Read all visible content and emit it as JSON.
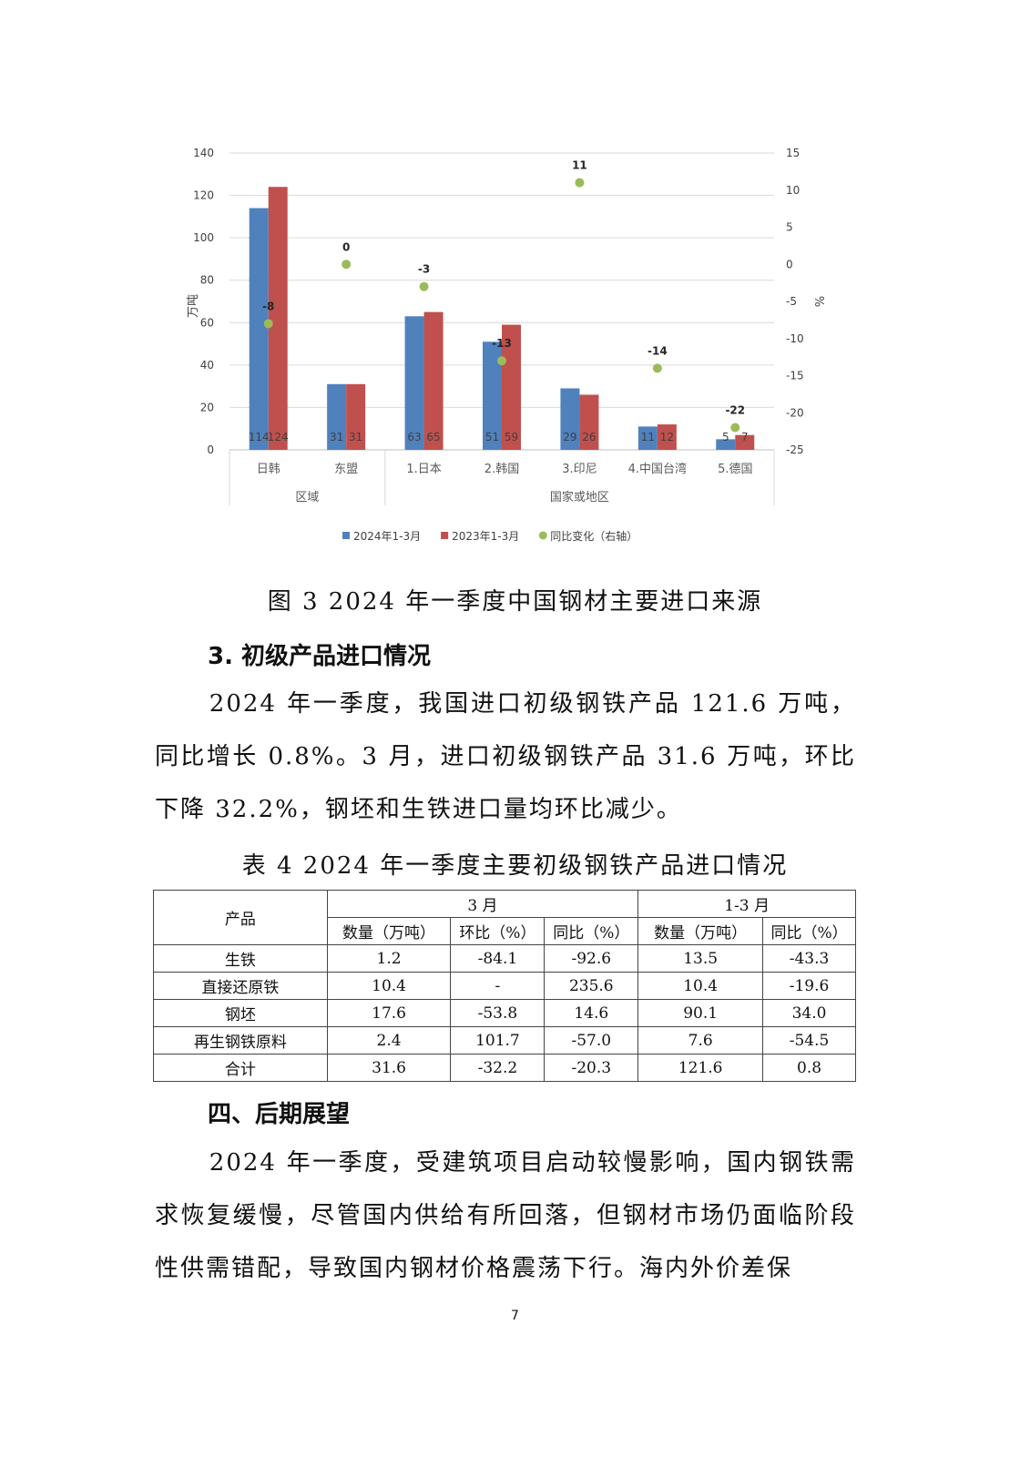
{
  "chart_data": {
    "type": "bar",
    "title": "",
    "ylabel": "万吨",
    "y2label": "%",
    "ylim": [
      0,
      140
    ],
    "y_ticks": [
      "0",
      "20",
      "40",
      "60",
      "80",
      "100",
      "120",
      "140"
    ],
    "y2lim": [
      -25,
      15
    ],
    "y2_ticks": [
      "-25",
      "-20",
      "-15",
      "-10",
      "-5",
      "0",
      "5",
      "10",
      "15"
    ],
    "grid": true,
    "legend_position": "bottom",
    "categories": [
      "日韩",
      "东盟",
      "1.日本",
      "2.韩国",
      "3.印尼",
      "4.中国台湾",
      "5.德国"
    ],
    "groups": [
      {
        "label": "区域",
        "count": 2
      },
      {
        "label": "国家或地区",
        "count": 5
      }
    ],
    "series": [
      {
        "name": "2024年1-3月",
        "type": "bar",
        "color": "#4f81bd",
        "values": [
          114,
          31,
          63,
          51,
          29,
          11,
          5
        ]
      },
      {
        "name": "2023年1-3月",
        "type": "bar",
        "color": "#c0504d",
        "values": [
          124,
          31,
          65,
          59,
          26,
          12,
          7
        ]
      },
      {
        "name": "同比变化（右轴）",
        "type": "scatter",
        "axis": "right",
        "color": "#9bbb59",
        "values": [
          -8,
          0,
          -3,
          -13,
          11,
          -14,
          -22
        ]
      }
    ]
  },
  "figure_caption": "图 3  2024 年一季度中国钢材主要进口来源",
  "section3_heading": "3. 初级产品进口情况",
  "section3_paragraph": "2024 年一季度，我国进口初级钢铁产品 121.6 万吨，同比增长 0.8%。3 月，进口初级钢铁产品 31.6 万吨，环比下降 32.2%，钢坯和生铁进口量均环比减少。",
  "table_caption": "表 4  2024 年一季度主要初级钢铁产品进口情况",
  "table": {
    "header_product": "产品",
    "group_march": "3 月",
    "group_q1": "1-3 月",
    "columns": [
      "数量（万吨）",
      "环比（%）",
      "同比（%）",
      "数量（万吨）",
      "同比（%）"
    ],
    "rows": [
      [
        "生铁",
        "1.2",
        "-84.1",
        "-92.6",
        "13.5",
        "-43.3"
      ],
      [
        "直接还原铁",
        "10.4",
        "-",
        "235.6",
        "10.4",
        "-19.6"
      ],
      [
        "钢坯",
        "17.6",
        "-53.8",
        "14.6",
        "90.1",
        "34.0"
      ],
      [
        "再生钢铁原料",
        "2.4",
        "101.7",
        "-57.0",
        "7.6",
        "-54.5"
      ],
      [
        "合计",
        "31.6",
        "-32.2",
        "-20.3",
        "121.6",
        "0.8"
      ]
    ]
  },
  "section4_heading": "四、后期展望",
  "section4_paragraph": "2024 年一季度，受建筑项目启动较慢影响，国内钢铁需求恢复缓慢，尽管国内供给有所回落，但钢材市场仍面临阶段性供需错配，导致国内钢材价格震荡下行。海内外价差保",
  "page_number": "7"
}
